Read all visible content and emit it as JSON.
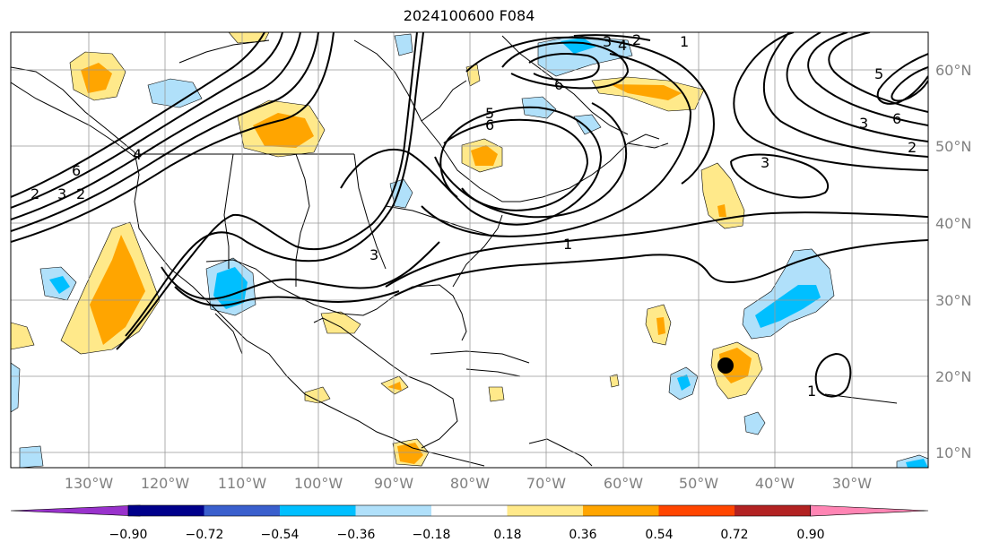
{
  "title": "2024100600 F084",
  "lat_labels": [
    "60°N",
    "50°N",
    "40°N",
    "30°N",
    "20°N",
    "10°N"
  ],
  "lon_labels": [
    "130°W",
    "120°W",
    "110°W",
    "100°W",
    "90°W",
    "80°W",
    "70°W",
    "60°W",
    "50°W",
    "40°W",
    "30°W"
  ],
  "colorbar": {
    "ticks": [
      "−0.90",
      "−0.72",
      "−0.54",
      "−0.36",
      "−0.18",
      "0.18",
      "0.36",
      "0.54",
      "0.72",
      "0.90"
    ],
    "colors": [
      "#9932cc",
      "#00008b",
      "#3a5fcd",
      "#00bfff",
      "#b0e0fa",
      "#ffffff",
      "#ffe98a",
      "#ffa500",
      "#ff4500",
      "#b22222",
      "#ff85b4"
    ]
  },
  "contour_labels": {
    "c1": "2",
    "c2": "3",
    "c3": "4",
    "c4": "2",
    "c5": "6",
    "c6": "5",
    "c7": "6",
    "c8": "6",
    "c9": "2",
    "c10": "6",
    "c11": "2",
    "c12": "3",
    "c13": "1",
    "c14": "3",
    "c15": "6",
    "c16": "5",
    "c17": "4",
    "c18": "3",
    "c19": "1"
  },
  "marker": {
    "name": "storm-center",
    "lat": "21",
    "lon": "46"
  }
}
